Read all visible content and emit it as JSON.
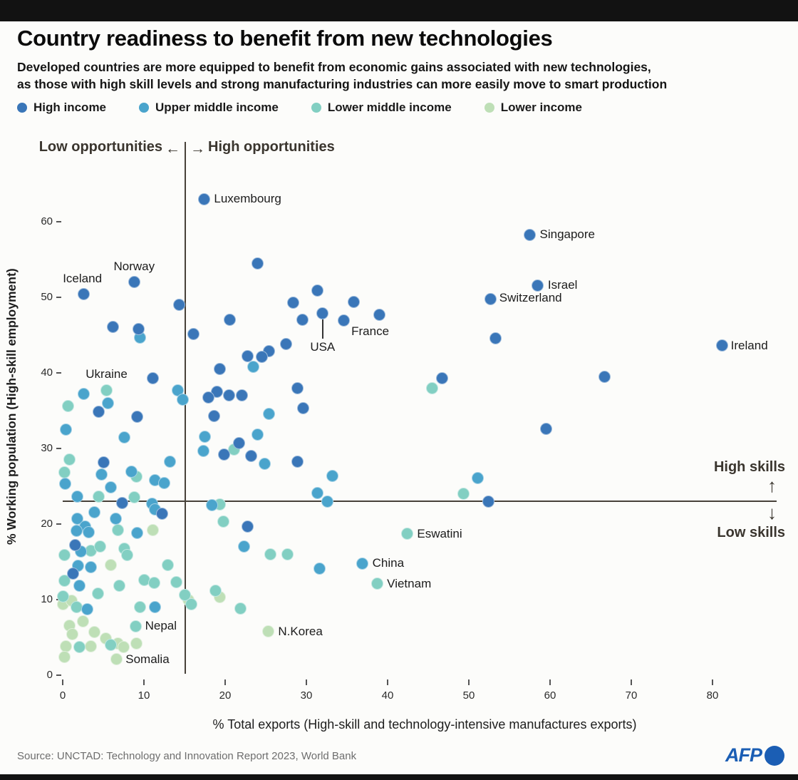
{
  "header": {
    "title": "Country readiness to benefit from new technologies",
    "subtitle_line1": "Developed countries are more equipped to benefit from economic gains associated with new technologies,",
    "subtitle_line2": "as those with high skill levels and strong manufacturing industries can more easily move to smart production"
  },
  "legend": [
    {
      "label": "High income",
      "color": "#3a76b8"
    },
    {
      "label": "Upper middle income",
      "color": "#4aa4cc"
    },
    {
      "label": "Lower middle income",
      "color": "#82cfc2"
    },
    {
      "label": "Lower income",
      "color": "#bedfb6"
    }
  ],
  "quadrant": {
    "left_label": "Low opportunities",
    "right_label": "High opportunities",
    "high_skills": "High skills",
    "low_skills": "Low skills",
    "arrow_left": "←",
    "arrow_right": "→",
    "arrow_up": "↑",
    "arrow_down": "↓"
  },
  "axes": {
    "x_label": "% Total exports (High-skill and technology-intensive manufactures exports)",
    "y_label": "% Working population (High-skill employment)",
    "x_ticks": [
      0,
      10,
      20,
      30,
      40,
      50,
      60,
      70,
      80
    ],
    "y_ticks": [
      0,
      10,
      20,
      30,
      40,
      50,
      60
    ]
  },
  "footer": {
    "source": "Source: UNCTAD: Technology and Innovation Report 2023, World Bank",
    "logo_text": "AFP"
  },
  "chart_data": {
    "type": "scatter",
    "xlabel": "% Total exports (High-skill and technology-intensive manufactures exports)",
    "ylabel": "% Working population (High-skill employment)",
    "xlim": [
      0,
      89
    ],
    "ylim": [
      0,
      68
    ],
    "grid": false,
    "thresholds": {
      "x": 15.1,
      "y": 23
    },
    "series": [
      {
        "name": "Lower income",
        "color": "#bedfb6",
        "points": [
          {
            "x": 25.3,
            "y": 5.8,
            "label": "N.Korea",
            "dx": 14,
            "dy": 0,
            "align": "left"
          },
          {
            "x": 6.6,
            "y": 2.1,
            "label": "Somalia",
            "dx": 13,
            "dy": 0,
            "align": "left"
          },
          [
            11.1,
            19.2
          ],
          [
            5.9,
            14.6
          ],
          [
            0.0,
            9.4
          ],
          [
            1.1,
            9.9
          ],
          [
            15.5,
            10.0
          ],
          [
            19.3,
            10.3
          ],
          [
            2.5,
            7.1
          ],
          [
            0.8,
            6.6
          ],
          [
            1.2,
            5.4
          ],
          [
            3.9,
            5.7
          ],
          [
            5.3,
            4.9
          ],
          [
            0.4,
            3.8
          ],
          [
            3.5,
            3.8
          ],
          [
            6.8,
            4.2
          ],
          [
            7.5,
            3.7
          ],
          [
            0.2,
            2.4
          ],
          [
            9.1,
            4.2
          ]
        ]
      },
      {
        "name": "Lower middle income",
        "color": "#82cfc2",
        "points": [
          {
            "x": 5.4,
            "y": 37.7,
            "label": "Ukraine",
            "dx": 0,
            "dy": -22,
            "align": "center"
          },
          {
            "x": 42.4,
            "y": 18.7,
            "label": "Eswatini",
            "dx": 14,
            "dy": 0,
            "align": "left"
          },
          {
            "x": 38.7,
            "y": 12.1,
            "label": "Vietnam",
            "dx": 14,
            "dy": 0,
            "align": "left"
          },
          {
            "x": 9.0,
            "y": 6.5,
            "label": "Nepal",
            "dx": 13,
            "dy": 0,
            "align": "left"
          },
          [
            49.3,
            24.0
          ],
          [
            0.8,
            28.5
          ],
          [
            0.2,
            26.8
          ],
          [
            9.1,
            26.3
          ],
          [
            4.4,
            23.6
          ],
          [
            8.8,
            23.5
          ],
          [
            19.3,
            22.6
          ],
          [
            19.8,
            20.3
          ],
          [
            6.8,
            19.2
          ],
          [
            3.5,
            16.5
          ],
          [
            4.6,
            17.0
          ],
          [
            0.2,
            15.9
          ],
          [
            7.6,
            16.7
          ],
          [
            7.9,
            15.9
          ],
          [
            25.6,
            16.0
          ],
          [
            27.7,
            16.0
          ],
          [
            12.9,
            14.6
          ],
          [
            10.0,
            12.6
          ],
          [
            11.3,
            12.2
          ],
          [
            14.0,
            12.3
          ],
          [
            15.0,
            10.6
          ],
          [
            15.8,
            9.4
          ],
          [
            21.9,
            8.8
          ],
          [
            0.2,
            12.5
          ],
          [
            7.0,
            11.8
          ],
          [
            4.3,
            10.8
          ],
          [
            0.0,
            10.4
          ],
          [
            1.7,
            9.0
          ],
          [
            9.5,
            9.0
          ],
          [
            5.9,
            4.0
          ],
          [
            2.1,
            3.7
          ],
          [
            0.7,
            35.6
          ],
          [
            45.5,
            38.0
          ],
          [
            21.1,
            29.9
          ],
          [
            18.8,
            11.2
          ]
        ]
      },
      {
        "name": "Upper middle income",
        "color": "#4aa4cc",
        "points": [
          {
            "x": 36.9,
            "y": 14.8,
            "label": "China",
            "dx": 14,
            "dy": 0,
            "align": "left"
          },
          [
            23.5,
            40.8
          ],
          [
            25.4,
            34.6
          ],
          [
            51.1,
            26.1
          ],
          [
            9.5,
            44.7
          ],
          [
            2.6,
            37.2
          ],
          [
            5.6,
            36.0
          ],
          [
            0.4,
            32.5
          ],
          [
            7.6,
            31.5
          ],
          [
            17.5,
            31.6
          ],
          [
            13.2,
            28.3
          ],
          [
            4.8,
            26.6
          ],
          [
            8.5,
            26.9
          ],
          [
            11.4,
            25.8
          ],
          [
            12.5,
            25.4
          ],
          [
            5.9,
            24.9
          ],
          [
            0.3,
            25.3
          ],
          [
            1.8,
            23.6
          ],
          [
            14.2,
            37.7
          ],
          [
            14.8,
            36.5
          ],
          [
            17.3,
            29.7
          ],
          [
            24.0,
            31.8
          ],
          [
            24.9,
            28.0
          ],
          [
            33.2,
            26.4
          ],
          [
            31.4,
            24.1
          ],
          [
            32.6,
            23.0
          ],
          [
            18.4,
            22.5
          ],
          [
            3.9,
            21.6
          ],
          [
            1.8,
            20.7
          ],
          [
            2.8,
            19.7
          ],
          [
            3.2,
            18.9
          ],
          [
            6.5,
            20.7
          ],
          [
            1.7,
            19.1
          ],
          [
            2.2,
            16.4
          ],
          [
            9.2,
            18.8
          ],
          [
            22.3,
            17.0
          ],
          [
            31.6,
            14.1
          ],
          [
            1.9,
            14.5
          ],
          [
            3.5,
            14.3
          ],
          [
            2.1,
            11.8
          ],
          [
            3.0,
            8.7
          ],
          [
            11.0,
            22.7
          ],
          [
            11.4,
            21.9
          ],
          [
            11.4,
            9.0
          ]
        ]
      },
      {
        "name": "High income",
        "color": "#3a76b8",
        "points": [
          {
            "x": 17.4,
            "y": 63.0,
            "label": "Luxembourg",
            "dx": 14,
            "dy": 0,
            "align": "left"
          },
          {
            "x": 57.5,
            "y": 58.3,
            "label": "Singapore",
            "dx": 14,
            "dy": 0,
            "align": "left"
          },
          {
            "x": 58.5,
            "y": 51.6,
            "label": "Israel",
            "dx": 14,
            "dy": 0,
            "align": "left"
          },
          {
            "x": 52.7,
            "y": 49.8,
            "label": "Switzerland",
            "dx": 12,
            "dy": -1,
            "align": "left"
          },
          {
            "x": 81.2,
            "y": 43.6,
            "label": "Ireland",
            "dx": 12,
            "dy": 0,
            "align": "left"
          },
          {
            "x": 8.8,
            "y": 52.0,
            "label": "Norway",
            "dx": 0,
            "dy": -22,
            "align": "center"
          },
          {
            "x": 2.6,
            "y": 50.4,
            "label": "Iceland",
            "dx": -2,
            "dy": -22,
            "align": "center"
          },
          {
            "x": 32.0,
            "y": 47.9,
            "label": "USA",
            "dx": 0,
            "dy": 48,
            "align": "center",
            "leader": true
          },
          {
            "x": 39.0,
            "y": 47.7,
            "label": "France",
            "dx": -13,
            "dy": 24,
            "align": "center"
          },
          [
            24.0,
            54.5
          ],
          [
            14.3,
            49.0
          ],
          [
            31.4,
            50.9
          ],
          [
            28.4,
            49.3
          ],
          [
            35.8,
            49.4
          ],
          [
            34.6,
            46.9
          ],
          [
            29.5,
            47.0
          ],
          [
            20.6,
            47.0
          ],
          [
            6.2,
            46.1
          ],
          [
            9.3,
            45.8
          ],
          [
            16.1,
            45.1
          ],
          [
            53.3,
            44.6
          ],
          [
            46.7,
            39.3
          ],
          [
            66.7,
            39.5
          ],
          [
            59.5,
            32.6
          ],
          [
            52.4,
            23.0
          ],
          [
            27.5,
            43.8
          ],
          [
            25.4,
            42.9
          ],
          [
            22.8,
            42.2
          ],
          [
            24.5,
            42.1
          ],
          [
            19.3,
            40.5
          ],
          [
            28.9,
            38.0
          ],
          [
            19.0,
            37.5
          ],
          [
            20.5,
            37.0
          ],
          [
            22.1,
            37.0
          ],
          [
            18.6,
            34.3
          ],
          [
            29.6,
            35.3
          ],
          [
            17.9,
            36.7
          ],
          [
            11.1,
            39.3
          ],
          [
            4.4,
            34.9
          ],
          [
            9.2,
            34.2
          ],
          [
            5.0,
            28.2
          ],
          [
            21.7,
            30.7
          ],
          [
            19.9,
            29.2
          ],
          [
            23.2,
            29.0
          ],
          [
            28.9,
            28.3
          ],
          [
            7.3,
            22.8
          ],
          [
            12.2,
            21.4
          ],
          [
            22.8,
            19.7
          ],
          [
            1.5,
            17.2
          ],
          [
            1.3,
            13.4
          ]
        ]
      }
    ]
  }
}
